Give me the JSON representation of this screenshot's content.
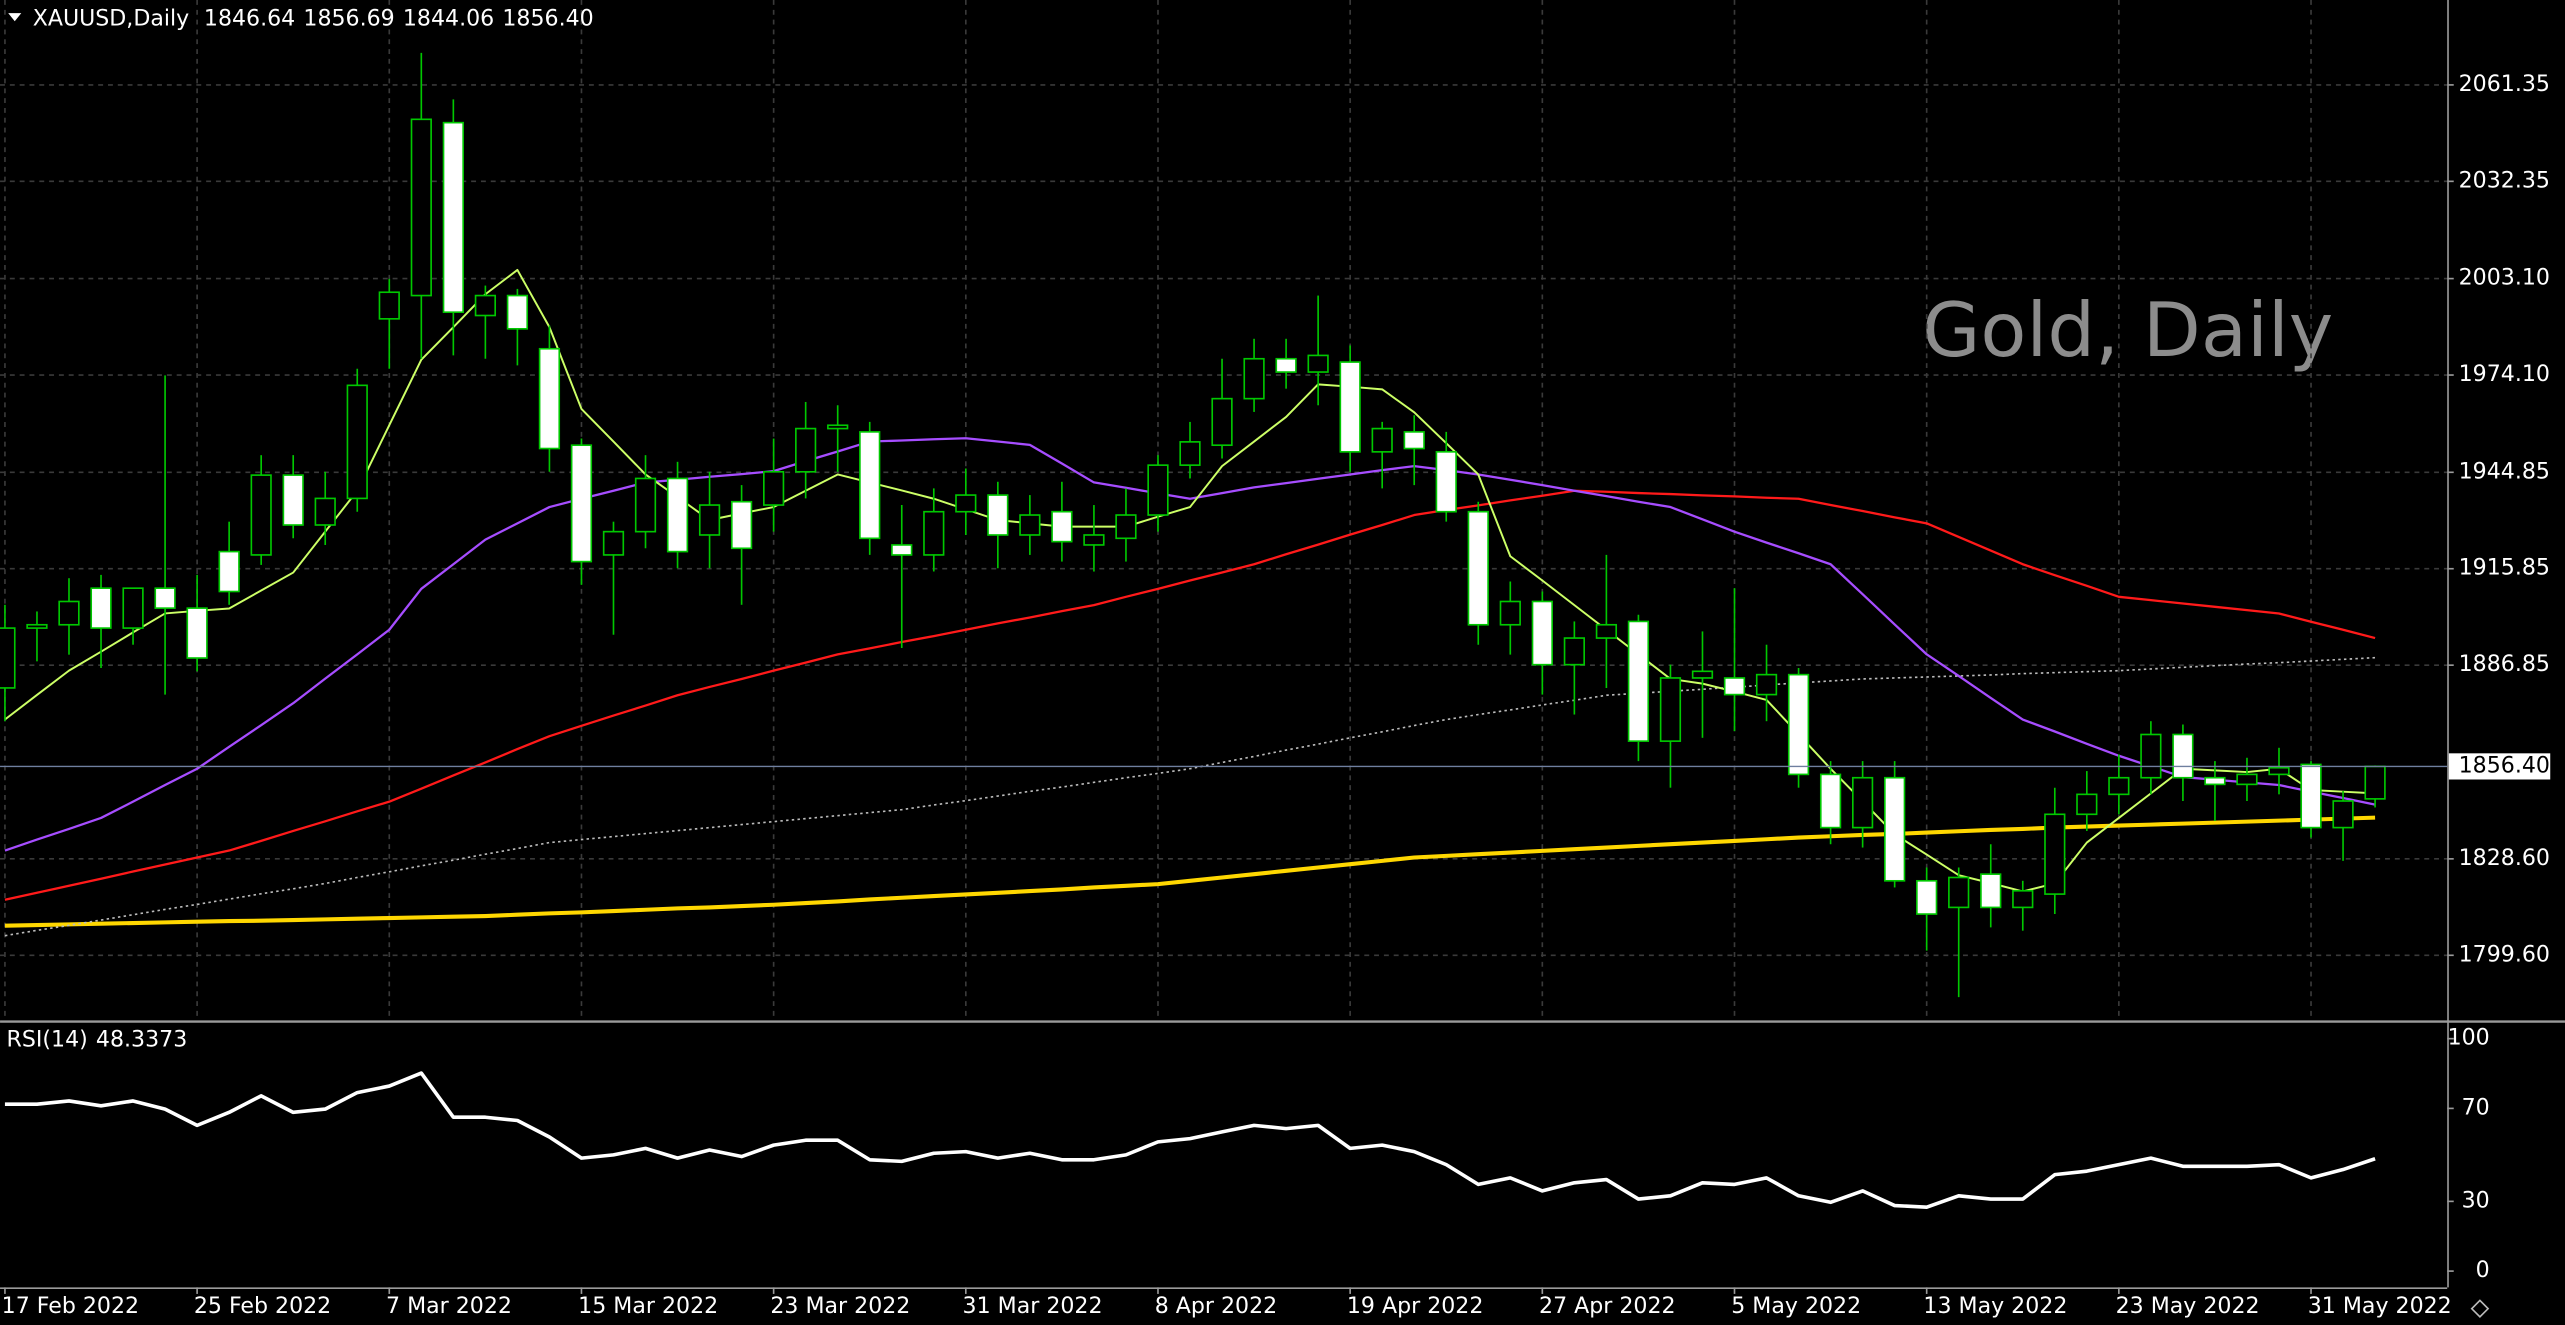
{
  "chart_data": [
    {
      "type": "candlestick",
      "symbol": "XAUUSD,Daily",
      "last_labels": [
        "1846.64",
        "1856.69",
        "1844.06",
        "1856.40"
      ],
      "watermark": "Gold, Daily",
      "categories": [
        "17 Feb 2022",
        null,
        null,
        null,
        null,
        null,
        "25 Feb 2022",
        null,
        null,
        null,
        null,
        null,
        "7 Mar 2022",
        null,
        null,
        null,
        null,
        null,
        "15 Mar 2022",
        null,
        null,
        null,
        null,
        null,
        "23 Mar 2022",
        null,
        null,
        null,
        null,
        null,
        "31 Mar 2022",
        null,
        null,
        null,
        null,
        null,
        "8 Apr 2022",
        null,
        null,
        null,
        null,
        null,
        "19 Apr 2022",
        null,
        null,
        null,
        null,
        null,
        "27 Apr 2022",
        null,
        null,
        null,
        null,
        null,
        "5 May 2022",
        null,
        null,
        null,
        null,
        null,
        "13 May 2022",
        null,
        null,
        null,
        null,
        null,
        "23 May 2022",
        null,
        null,
        null,
        null,
        null,
        "31 May 2022",
        null,
        null
      ],
      "open": [
        1880,
        1898,
        1899,
        1910,
        1898,
        1910,
        1904,
        1921,
        1920,
        1944,
        1929,
        1937,
        1991,
        1998,
        2050,
        1992,
        1998,
        1982,
        1953,
        1920,
        1927,
        1943,
        1926,
        1936,
        1935,
        1945,
        1958,
        1957,
        1923,
        1920,
        1933,
        1938,
        1926,
        1933,
        1923,
        1925,
        1932,
        1947,
        1953,
        1967,
        1979,
        1975,
        1978,
        1951,
        1957,
        1951,
        1933,
        1899,
        1906,
        1887,
        1895,
        1900,
        1864,
        1883,
        1883,
        1878,
        1884,
        1854,
        1838,
        1853,
        1822,
        1814,
        1824,
        1814,
        1818,
        1842,
        1848,
        1853,
        1866,
        1853,
        1851,
        1854,
        1857,
        1838,
        1846.64
      ],
      "high": [
        1905,
        1903,
        1913,
        1914,
        1910,
        1974,
        1914,
        1930,
        1950,
        1950,
        1945,
        1976,
        2003,
        2071,
        2057,
        2001,
        2000,
        1989,
        1955,
        1930,
        1950,
        1948,
        1945,
        1941,
        1955,
        1966,
        1965,
        1960,
        1935,
        1940,
        1946,
        1942,
        1938,
        1942,
        1935,
        1940,
        1950,
        1960,
        1979,
        1985,
        1985,
        1998,
        1983,
        1960,
        1962,
        1957,
        1936,
        1912,
        1909,
        1900,
        1920,
        1902,
        1887,
        1897,
        1910,
        1893,
        1886,
        1858,
        1858,
        1858,
        1826,
        1826,
        1833,
        1822,
        1850,
        1855,
        1860,
        1870,
        1869,
        1858,
        1859,
        1862,
        1858,
        1849,
        1856.69
      ],
      "low": [
        1870,
        1888,
        1890,
        1886,
        1893,
        1878,
        1885,
        1905,
        1917,
        1925,
        1923,
        1933,
        1976,
        1979,
        1980,
        1979,
        1977,
        1945,
        1911,
        1896,
        1922,
        1916,
        1916,
        1905,
        1927,
        1937,
        1945,
        1920,
        1892,
        1915,
        1926,
        1916,
        1920,
        1918,
        1915,
        1918,
        1927,
        1943,
        1949,
        1963,
        1970,
        1965,
        1945,
        1940,
        1941,
        1930,
        1893,
        1890,
        1878,
        1872,
        1880,
        1858,
        1850,
        1865,
        1867,
        1870,
        1850,
        1833,
        1832,
        1820,
        1801,
        1787,
        1808,
        1807,
        1812,
        1837,
        1842,
        1848,
        1846,
        1840,
        1846,
        1848,
        1835,
        1828,
        1844.06
      ],
      "close": [
        1898,
        1899,
        1906,
        1898,
        1910,
        1904,
        1889,
        1909,
        1944,
        1929,
        1937,
        1971,
        1999,
        2051,
        1993,
        1998,
        1988,
        1952,
        1918,
        1927,
        1943,
        1921,
        1935,
        1922,
        1945,
        1958,
        1959,
        1925,
        1920,
        1933,
        1938,
        1926,
        1932,
        1924,
        1926,
        1932,
        1947,
        1954,
        1967,
        1979,
        1975,
        1980,
        1951,
        1958,
        1952,
        1933,
        1899,
        1906,
        1887,
        1895,
        1899,
        1864,
        1883,
        1885,
        1878,
        1884,
        1854,
        1838,
        1853,
        1822,
        1812,
        1823,
        1814,
        1819,
        1842,
        1848,
        1853,
        1866,
        1853,
        1851,
        1854,
        1856,
        1838,
        1846,
        1856.4
      ],
      "line_color": "#00c800",
      "up_color": "#000000",
      "down_color": "#ffffff",
      "series": [
        {
          "color": "#ffd700",
          "width": 2.5,
          "values": [
            1808.5,
            1808.7,
            1808.9,
            1809.1,
            1809.3,
            1809.5,
            1809.7,
            1809.9,
            1810.0,
            1810.2,
            1810.4,
            1810.6,
            1810.8,
            1811.0,
            1811.2,
            1811.4,
            1811.8,
            1812.2,
            1812.5,
            1812.9,
            1813.3,
            1813.7,
            1814.0,
            1814.4,
            1814.8,
            1815.3,
            1815.8,
            1816.4,
            1816.9,
            1817.4,
            1817.9,
            1818.4,
            1818.9,
            1819.4,
            1820.0,
            1820.5,
            1821.0,
            1822.0,
            1823.0,
            1824.0,
            1825.0,
            1826.0,
            1827.0,
            1828.0,
            1829.0,
            1829.5,
            1830.0,
            1830.5,
            1831.0,
            1831.5,
            1832.0,
            1832.5,
            1833.0,
            1833.5,
            1834.0,
            1834.5,
            1835.0,
            1835.4,
            1835.8,
            1836.1,
            1836.5,
            1836.9,
            1837.3,
            1837.6,
            1838.0,
            1838.3,
            1838.6,
            1838.9,
            1839.2,
            1839.5,
            1839.8,
            1840.1,
            1840.4,
            1840.7,
            1841.0
          ]
        },
        {
          "color": "#bbbbbb",
          "width": 1,
          "style": "dotted",
          "values": [
            1805.5,
            1807.1,
            1808.6,
            1810.2,
            1811.8,
            1813.4,
            1814.9,
            1816.5,
            1818.1,
            1819.6,
            1821.2,
            1823.0,
            1824.7,
            1826.5,
            1828.2,
            1830.0,
            1831.7,
            1833.5,
            1834.4,
            1835.3,
            1836.2,
            1837.1,
            1838.0,
            1838.9,
            1839.8,
            1840.7,
            1841.6,
            1842.5,
            1843.4,
            1844.8,
            1846.1,
            1847.5,
            1848.9,
            1850.2,
            1851.6,
            1853.0,
            1854.3,
            1855.7,
            1857.6,
            1859.4,
            1861.3,
            1863.1,
            1865.0,
            1866.8,
            1868.7,
            1870.5,
            1872.0,
            1873.4,
            1874.9,
            1876.3,
            1877.8,
            1878.4,
            1879.0,
            1879.6,
            1880.2,
            1880.9,
            1881.5,
            1882.1,
            1882.7,
            1883.0,
            1883.3,
            1883.6,
            1883.9,
            1884.3,
            1884.6,
            1884.9,
            1885.2,
            1885.7,
            1886.2,
            1886.7,
            1887.2,
            1887.6,
            1888.1,
            1888.6,
            1889.1
          ]
        },
        {
          "color": "#ff1a1a",
          "width": 1.4,
          "values": [
            1816.3,
            1818.4,
            1820.5,
            1822.6,
            1824.8,
            1826.9,
            1829.0,
            1831.1,
            1834.0,
            1837.0,
            1839.9,
            1842.9,
            1845.8,
            1849.7,
            1853.7,
            1857.6,
            1861.6,
            1865.5,
            1868.6,
            1871.7,
            1874.7,
            1877.8,
            1880.3,
            1882.7,
            1885.2,
            1887.6,
            1890.1,
            1891.9,
            1893.8,
            1895.6,
            1897.5,
            1899.4,
            1901.2,
            1903.1,
            1904.9,
            1907.4,
            1909.8,
            1912.3,
            1914.7,
            1917.2,
            1920.2,
            1923.1,
            1926.1,
            1929.0,
            1932.0,
            1933.5,
            1934.9,
            1936.4,
            1937.8,
            1939.3,
            1939.0,
            1938.6,
            1938.3,
            1937.9,
            1937.6,
            1937.2,
            1936.9,
            1935.0,
            1933.2,
            1931.3,
            1929.5,
            1925.4,
            1921.3,
            1917.2,
            1913.9,
            1910.7,
            1907.4,
            1906.4,
            1905.4,
            1904.4,
            1903.4,
            1902.4,
            1899.9,
            1897.5,
            1895.0
          ]
        },
        {
          "color": "#a64dff",
          "width": 1.4,
          "values": [
            1831.1,
            1834.4,
            1837.6,
            1840.9,
            1845.8,
            1850.8,
            1855.7,
            1862.3,
            1868.8,
            1875.4,
            1882.8,
            1890.1,
            1897.5,
            1909.8,
            1917.2,
            1924.6,
            1929.5,
            1934.4,
            1936.9,
            1939.3,
            1941.8,
            1942.6,
            1943.5,
            1944.3,
            1945.2,
            1948.2,
            1951.1,
            1954.1,
            1954.4,
            1954.8,
            1955.1,
            1954.1,
            1953.1,
            1947.5,
            1941.8,
            1940.2,
            1938.5,
            1936.9,
            1938.6,
            1940.3,
            1941.6,
            1942.9,
            1944.2,
            1945.5,
            1946.7,
            1945.5,
            1944.2,
            1942.6,
            1941.0,
            1939.3,
            1937.7,
            1936.0,
            1934.4,
            1930.7,
            1927.0,
            1923.7,
            1920.5,
            1917.2,
            1908.2,
            1899.1,
            1890.1,
            1883.6,
            1877.0,
            1870.5,
            1866.9,
            1863.2,
            1859.6,
            1856.4,
            1853.2,
            1852.4,
            1851.6,
            1850.8,
            1848.8,
            1846.9,
            1844.9
          ]
        },
        {
          "color": "#ccff66",
          "width": 1.2,
          "values": [
            1870.5,
            1877.9,
            1885.2,
            1890.9,
            1896.7,
            1902.4,
            1903.2,
            1903.9,
            1909.3,
            1914.7,
            1927.0,
            1939.3,
            1959.0,
            1978.7,
            1988.5,
            1998.4,
            2005.7,
            1988.5,
            1963.9,
            1954.1,
            1944.2,
            1937.4,
            1930.5,
            1932.5,
            1934.4,
            1939.3,
            1944.2,
            1941.8,
            1939.4,
            1936.9,
            1933.7,
            1930.5,
            1929.5,
            1928.5,
            1928.5,
            1928.5,
            1931.5,
            1934.4,
            1946.7,
            1954.1,
            1961.5,
            1971.3,
            1970.6,
            1969.8,
            1962.9,
            1953.6,
            1944.2,
            1919.6,
            1912.3,
            1904.9,
            1897.5,
            1890.1,
            1882.7,
            1881.3,
            1878.9,
            1876.4,
            1866.1,
            1855.7,
            1845.9,
            1836.0,
            1829.9,
            1823.7,
            1821.3,
            1818.8,
            1821.2,
            1833.5,
            1840.9,
            1848.3,
            1855.7,
            1855.2,
            1854.7,
            1855.7,
            1849.3,
            1848.8,
            1848.3
          ]
        }
      ],
      "ylim": [
        1780.9,
        2085.9
      ],
      "yticks": [
        2061.35,
        2032.35,
        {
          "value": 2003.1,
          "label": "2003.10"
        },
        {
          "value": 1974.1,
          "label": "1974.10"
        },
        1944.85,
        1915.85,
        1886.85,
        {
          "value": 1828.6,
          "label": "1828.60"
        },
        {
          "value": 1799.6,
          "label": "1799.60"
        }
      ],
      "grid": true
    },
    {
      "type": "line",
      "title": "RSI(14)",
      "color": "#ffffff",
      "values": [
        71.8,
        71.8,
        73.2,
        71.1,
        73.2,
        69.7,
        62.7,
        68.3,
        75.4,
        68.3,
        69.7,
        76.8,
        79.6,
        85.2,
        66.2,
        66.2,
        64.8,
        57.7,
        48.6,
        50.0,
        52.8,
        48.6,
        52.1,
        49.3,
        54.2,
        56.3,
        56.3,
        47.9,
        47.2,
        50.7,
        51.4,
        48.6,
        50.7,
        47.9,
        47.9,
        50.0,
        55.6,
        57.0,
        59.9,
        62.7,
        61.3,
        62.7,
        52.8,
        54.2,
        51.4,
        45.8,
        37.3,
        40.1,
        34.5,
        38.0,
        39.4,
        31.0,
        32.4,
        38.0,
        37.3,
        40.1,
        32.4,
        29.6,
        34.5,
        28.2,
        27.5,
        32.4,
        31.0,
        31.0,
        41.5,
        43.0,
        45.8,
        48.6,
        45.1,
        45.1,
        45.1,
        45.8,
        40.1,
        43.7,
        48.3373
      ],
      "ylim": [
        -7,
        105.6
      ],
      "yticks": [
        100,
        70,
        30,
        0
      ],
      "grid": false
    }
  ]
}
